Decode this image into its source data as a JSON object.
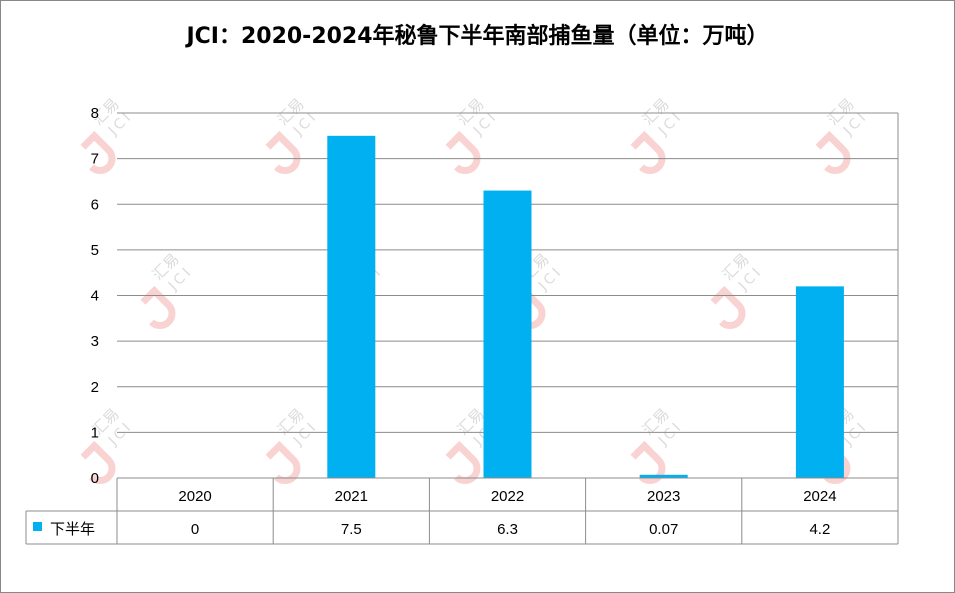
{
  "title": "JCI：2020-2024年秘鲁下半年南部捕鱼量（单位：万吨）",
  "watermark": {
    "cn": "汇易",
    "en": "JCI"
  },
  "chart_data": {
    "type": "bar",
    "title": "JCI：2020-2024年秘鲁下半年南部捕鱼量（单位：万吨）",
    "categories": [
      "2020",
      "2021",
      "2022",
      "2023",
      "2024"
    ],
    "series": [
      {
        "name": "下半年",
        "values": [
          0,
          7.5,
          6.3,
          0.07,
          4.2
        ],
        "color": "#00B0F0"
      }
    ],
    "value_labels": [
      "0",
      "7.5",
      "6.3",
      "0.07",
      "4.2"
    ],
    "ylim": [
      0,
      8
    ],
    "yticks": [
      0,
      1,
      2,
      3,
      4,
      5,
      6,
      7,
      8
    ],
    "grid": true,
    "data_table": true,
    "xlabel": "",
    "ylabel": ""
  }
}
